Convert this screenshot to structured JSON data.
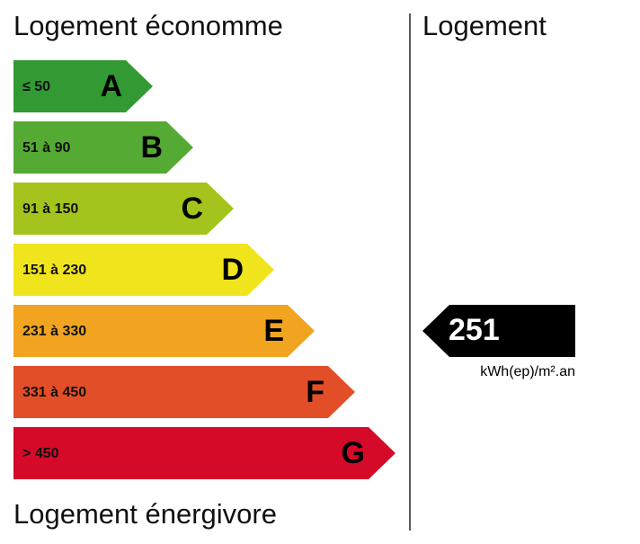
{
  "top_label": "Logement économme",
  "bottom_label": "Logement énergivore",
  "right_header": "Logement",
  "classes": [
    {
      "range": "≤ 50",
      "letter": "A",
      "color": "#339a33"
    },
    {
      "range": "51 à 90",
      "letter": "B",
      "color": "#55aa33"
    },
    {
      "range": "91 à 150",
      "letter": "C",
      "color": "#a3c41c"
    },
    {
      "range": "151 à 230",
      "letter": "D",
      "color": "#f0e41c"
    },
    {
      "range": "231 à 330",
      "letter": "E",
      "color": "#f0a420"
    },
    {
      "range": "331 à 450",
      "letter": "F",
      "color": "#e24e28"
    },
    {
      "range": "> 450",
      "letter": "G",
      "color": "#d40a28"
    }
  ],
  "current": {
    "value": 251,
    "unit": "kWh(ep)/m².an"
  }
}
